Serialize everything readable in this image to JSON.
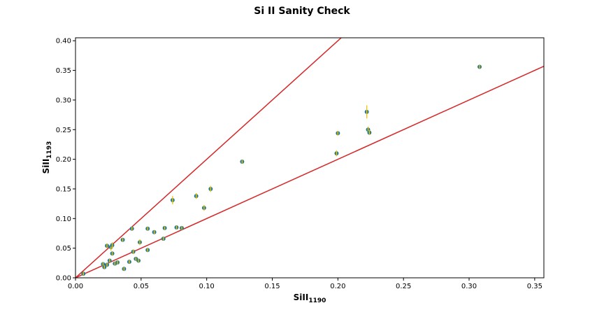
{
  "chart_data": {
    "type": "scatter",
    "title": "Si II Sanity Check",
    "xlabel": {
      "main": "SiII",
      "sub": "1190"
    },
    "ylabel": {
      "main": "SiII",
      "sub": "1193"
    },
    "xlim": [
      0.0,
      0.357
    ],
    "ylim": [
      0.0,
      0.405
    ],
    "xticks": [
      "0.00",
      "0.05",
      "0.10",
      "0.15",
      "0.20",
      "0.25",
      "0.30",
      "0.35"
    ],
    "yticks": [
      "0.00",
      "0.05",
      "0.10",
      "0.15",
      "0.20",
      "0.25",
      "0.30",
      "0.35",
      "0.40"
    ],
    "grid": false,
    "colors": {
      "marker": "#2e7d8e",
      "errorbar": "#f2c500",
      "line": "#d62728"
    },
    "lines": [
      {
        "slope": 2.0,
        "intercept": 0.0
      },
      {
        "slope": 1.0,
        "intercept": 0.0
      }
    ],
    "points": [
      {
        "x": 0.006,
        "y": 0.007,
        "err": 0.003
      },
      {
        "x": 0.021,
        "y": 0.023,
        "err": 0.003
      },
      {
        "x": 0.022,
        "y": 0.018,
        "err": 0.003
      },
      {
        "x": 0.024,
        "y": 0.022,
        "err": 0.003
      },
      {
        "x": 0.024,
        "y": 0.054,
        "err": 0.004
      },
      {
        "x": 0.026,
        "y": 0.029,
        "err": 0.003
      },
      {
        "x": 0.027,
        "y": 0.052,
        "err": 0.006
      },
      {
        "x": 0.028,
        "y": 0.055,
        "err": 0.005
      },
      {
        "x": 0.028,
        "y": 0.041,
        "err": 0.003
      },
      {
        "x": 0.03,
        "y": 0.024,
        "err": 0.003
      },
      {
        "x": 0.032,
        "y": 0.026,
        "err": 0.003
      },
      {
        "x": 0.036,
        "y": 0.064,
        "err": 0.003
      },
      {
        "x": 0.037,
        "y": 0.015,
        "err": 0.003
      },
      {
        "x": 0.041,
        "y": 0.027,
        "err": 0.003
      },
      {
        "x": 0.043,
        "y": 0.083,
        "err": 0.003
      },
      {
        "x": 0.044,
        "y": 0.044,
        "err": 0.004
      },
      {
        "x": 0.046,
        "y": 0.032,
        "err": 0.003
      },
      {
        "x": 0.048,
        "y": 0.029,
        "err": 0.003
      },
      {
        "x": 0.049,
        "y": 0.06,
        "err": 0.005
      },
      {
        "x": 0.055,
        "y": 0.047,
        "err": 0.003
      },
      {
        "x": 0.055,
        "y": 0.083,
        "err": 0.003
      },
      {
        "x": 0.06,
        "y": 0.077,
        "err": 0.003
      },
      {
        "x": 0.067,
        "y": 0.066,
        "err": 0.003
      },
      {
        "x": 0.068,
        "y": 0.084,
        "err": 0.003
      },
      {
        "x": 0.074,
        "y": 0.131,
        "err": 0.007
      },
      {
        "x": 0.077,
        "y": 0.085,
        "err": 0.003
      },
      {
        "x": 0.081,
        "y": 0.084,
        "err": 0.003
      },
      {
        "x": 0.092,
        "y": 0.138,
        "err": 0.005
      },
      {
        "x": 0.098,
        "y": 0.118,
        "err": 0.005
      },
      {
        "x": 0.103,
        "y": 0.15,
        "err": 0.005
      },
      {
        "x": 0.127,
        "y": 0.196,
        "err": 0.003
      },
      {
        "x": 0.199,
        "y": 0.21,
        "err": 0.005
      },
      {
        "x": 0.2,
        "y": 0.244,
        "err": 0.004
      },
      {
        "x": 0.222,
        "y": 0.28,
        "err": 0.011
      },
      {
        "x": 0.223,
        "y": 0.25,
        "err": 0.005
      },
      {
        "x": 0.224,
        "y": 0.245,
        "err": 0.004
      },
      {
        "x": 0.308,
        "y": 0.356,
        "err": 0.003
      }
    ]
  }
}
